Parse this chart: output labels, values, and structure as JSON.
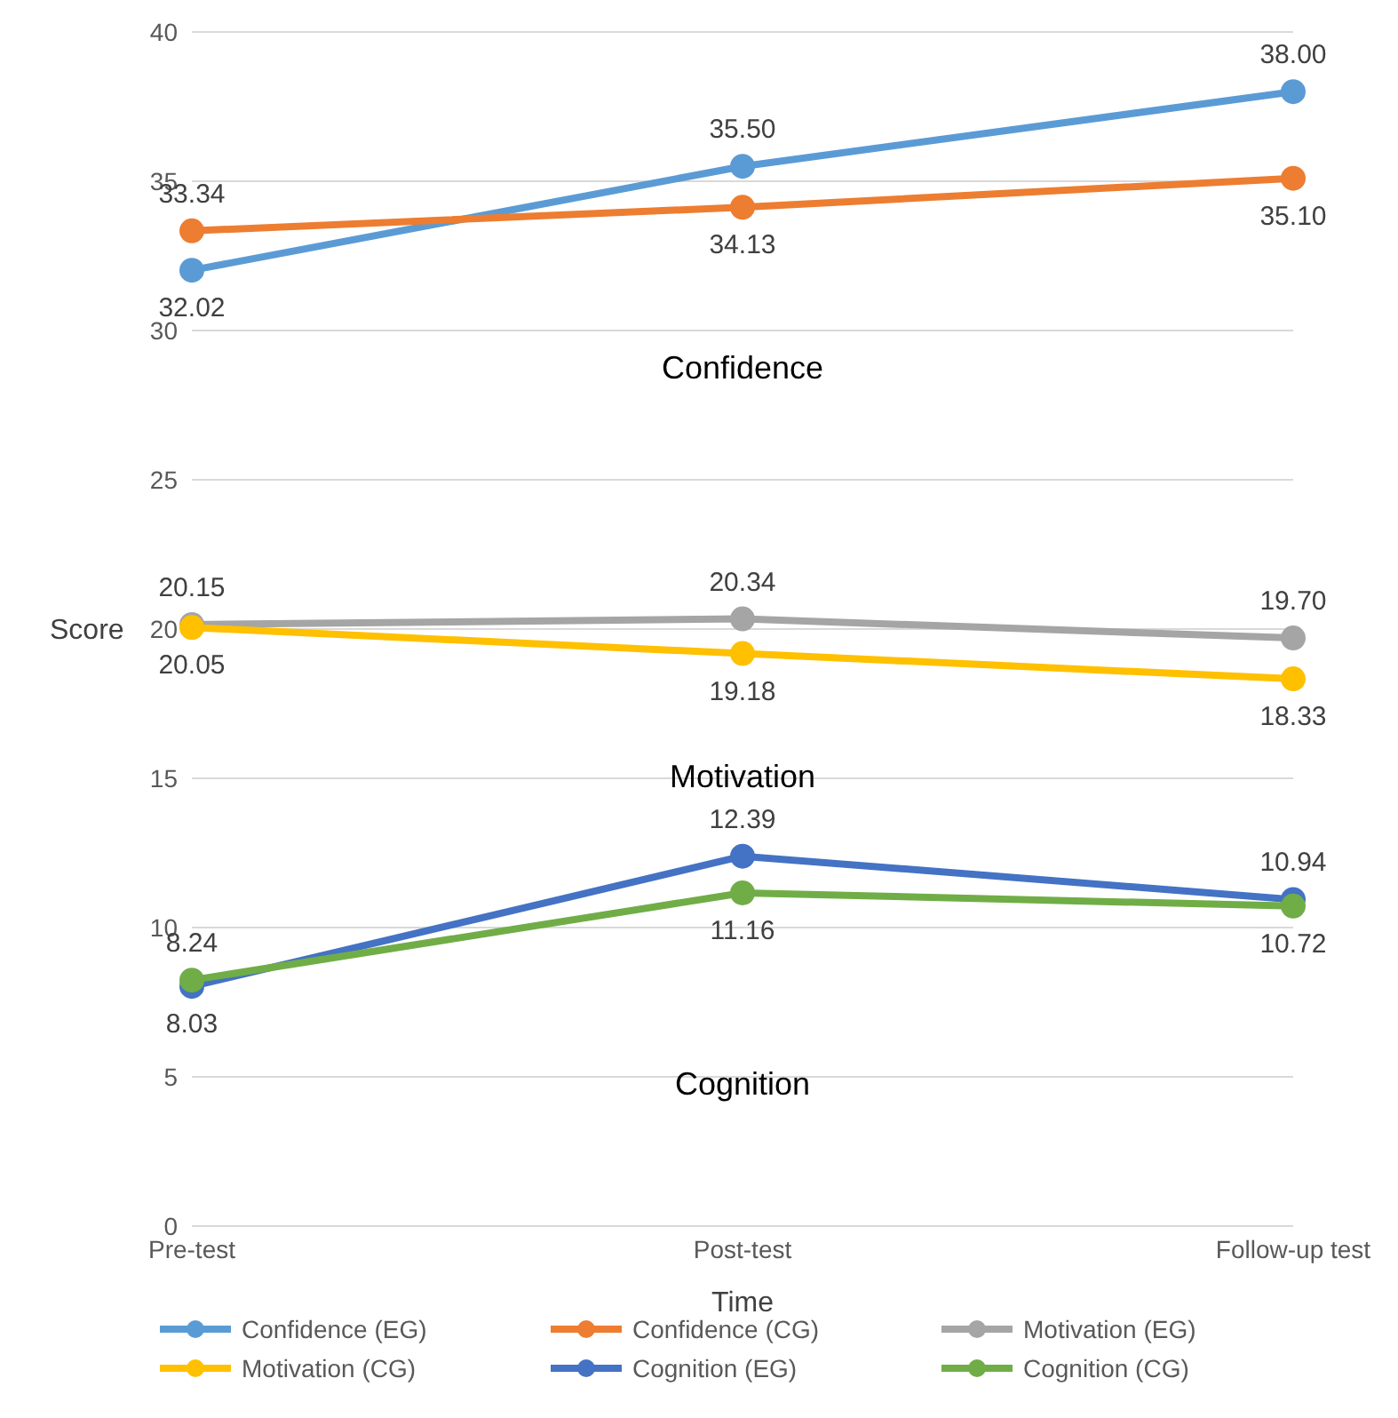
{
  "chart_data": {
    "type": "line",
    "xlabel": "Time",
    "ylabel": "Score",
    "categories": [
      "Pre-test",
      "Post-test",
      "Follow-up test"
    ],
    "series": [
      {
        "name": "Confidence (EG)",
        "color": "#5b9bd5",
        "values": [
          32.02,
          35.5,
          38.0
        ],
        "value_labels": [
          "32.02",
          "35.50",
          "38.00"
        ]
      },
      {
        "name": "Confidence (CG)",
        "color": "#ed7d31",
        "values": [
          33.34,
          34.13,
          35.1
        ],
        "value_labels": [
          "33.34",
          "34.13",
          "35.10"
        ]
      },
      {
        "name": "Motivation (EG)",
        "color": "#a5a5a5",
        "values": [
          20.15,
          20.34,
          19.7
        ],
        "value_labels": [
          "20.15",
          "20.34",
          "19.70"
        ]
      },
      {
        "name": "Motivation (CG)",
        "color": "#ffc000",
        "values": [
          20.05,
          19.18,
          18.33
        ],
        "value_labels": [
          "20.05",
          "19.18",
          "18.33"
        ]
      },
      {
        "name": "Cognition (EG)",
        "color": "#4472c4",
        "values": [
          8.03,
          12.39,
          10.94
        ],
        "value_labels": [
          "8.03",
          "12.39",
          "10.94"
        ]
      },
      {
        "name": "Cognition (CG)",
        "color": "#70ad47",
        "values": [
          8.24,
          11.16,
          10.72
        ],
        "value_labels": [
          "8.24",
          "11.16",
          "10.72"
        ]
      }
    ],
    "annotations": [
      "Confidence",
      "Motivation",
      "Cognition"
    ],
    "ylim": [
      0,
      40
    ],
    "yticks": [
      0,
      5,
      10,
      15,
      20,
      25,
      30,
      35,
      40
    ],
    "grid": "y",
    "legend": "bottom",
    "marker": "circle",
    "line_style": "solid"
  }
}
